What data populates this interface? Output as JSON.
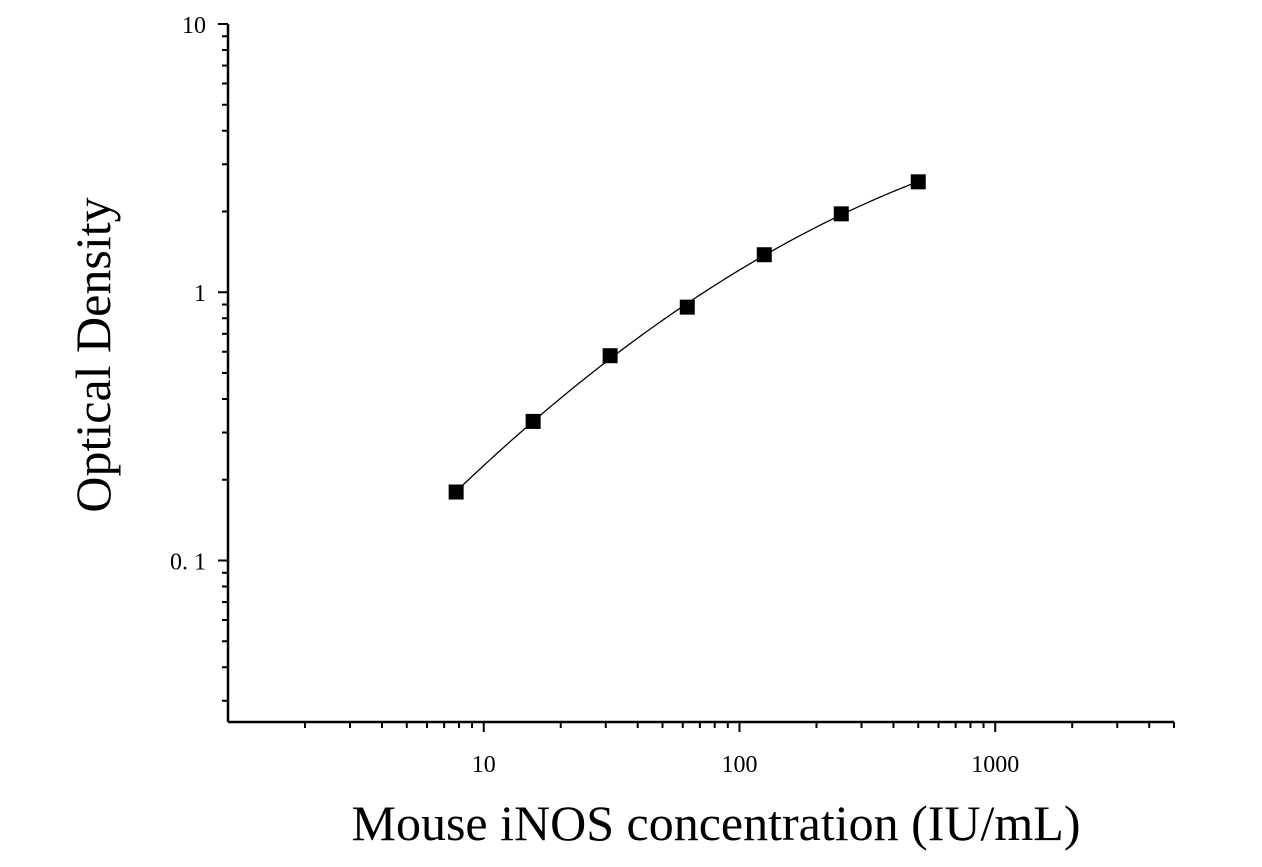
{
  "chart_data": {
    "type": "scatter",
    "title": "",
    "xlabel": "Mouse iNOS concentration (IU/mL)",
    "ylabel": "Optical Density",
    "x_scale": "log",
    "y_scale": "log",
    "xlim": [
      1,
      5000
    ],
    "ylim": [
      0.025,
      10
    ],
    "x_ticks": [
      {
        "value": 10,
        "label": "10"
      },
      {
        "value": 100,
        "label": "100"
      },
      {
        "value": 1000,
        "label": "1000"
      }
    ],
    "y_ticks": [
      {
        "value": 0.1,
        "label": "0. 1"
      },
      {
        "value": 1,
        "label": "1"
      },
      {
        "value": 10,
        "label": "10"
      }
    ],
    "grid": false,
    "legend": "none",
    "series": [
      {
        "x": [
          7.8,
          15.6,
          31.2,
          62.5,
          125,
          250,
          500
        ],
        "y": [
          0.18,
          0.33,
          0.58,
          0.88,
          1.38,
          1.96,
          2.58
        ],
        "marker": "square",
        "fit_curve": true
      }
    ],
    "colors": {
      "marker": "#000000",
      "line": "#000000",
      "axis": "#000000"
    }
  }
}
